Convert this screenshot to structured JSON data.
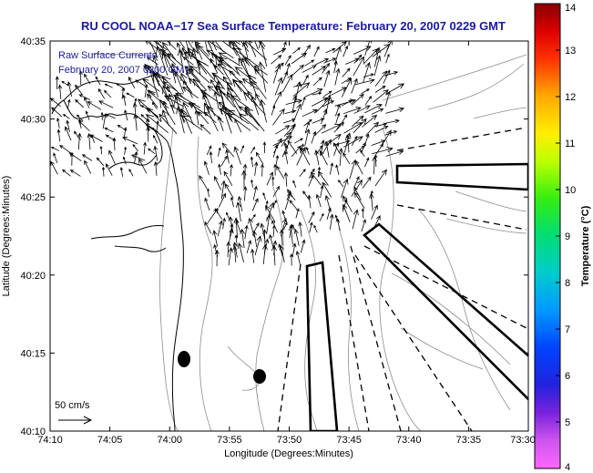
{
  "title": "RU COOL  NOAA−17  Sea Surface Temperature:  February 20, 2007 0229 GMT",
  "legend": {
    "line1": "Raw Surface Currents",
    "line2": "February 20, 2007 0200 GMT"
  },
  "axes": {
    "xlabel": "Longitude (Degrees:Minutes)",
    "ylabel": "Latitude (Degrees:Minutes)",
    "x_ticks": [
      "74:10",
      "74:05",
      "74:00",
      "73:55",
      "73:50",
      "73:45",
      "73:40",
      "73:35",
      "73:30"
    ],
    "y_ticks": [
      "40:10",
      "40:15",
      "40:20",
      "40:25",
      "40:30",
      "40:35"
    ]
  },
  "colorbar": {
    "label": "Temperature (°C)",
    "ticks": [
      "4",
      "5",
      "6",
      "7",
      "8",
      "9",
      "10",
      "11",
      "12",
      "13",
      "14"
    ],
    "min": 4,
    "max": 14
  },
  "scale_vector": {
    "label": "50 cm/s"
  },
  "colors": {
    "title": "#1a1aa6",
    "coast": "#000000",
    "bathymetry": "#8c8c8c",
    "vectors": "#000000"
  }
}
